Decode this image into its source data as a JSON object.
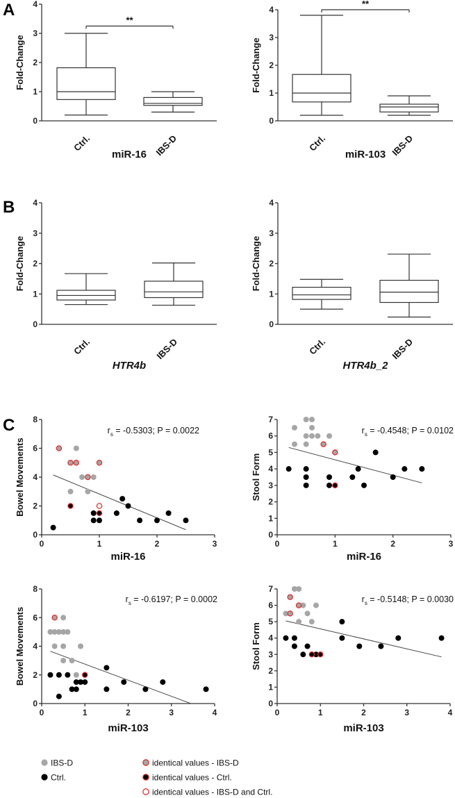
{
  "panel_letters": [
    "A",
    "B",
    "C"
  ],
  "colors": {
    "ibs": "#a6a6a6",
    "ctrl": "#000000",
    "ring": "#e03030",
    "axis": "#333333"
  },
  "legend": [
    {
      "type": "ibs",
      "label": "IBS-D"
    },
    {
      "type": "ctrl",
      "label": "Ctrl."
    },
    {
      "type": "ibs_id",
      "label": "identical values - IBS-D"
    },
    {
      "type": "ctrl_id",
      "label": "identical values - Ctrl."
    },
    {
      "type": "both_id",
      "label": "identical values - IBS-D and Ctrl."
    }
  ],
  "chart_data": [
    {
      "type": "box",
      "panel": "A",
      "title": "",
      "xlabel": "miR-16",
      "xlabel_italic": false,
      "ylabel": "Fold-Change",
      "ylim": [
        0,
        4
      ],
      "yticks": [
        "0",
        "1",
        "2",
        "3",
        "4"
      ],
      "categories": [
        "Ctrl.",
        "IBS-D"
      ],
      "boxes": [
        {
          "min": 0.2,
          "q1": 0.73,
          "median": 1.0,
          "q3": 1.82,
          "max": 3.0
        },
        {
          "min": 0.3,
          "q1": 0.53,
          "median": 0.6,
          "q3": 0.8,
          "max": 1.0
        }
      ],
      "significance": {
        "label": "**",
        "y": 3.25
      }
    },
    {
      "type": "box",
      "panel": "A",
      "title": "",
      "xlabel": "miR-103",
      "xlabel_italic": false,
      "ylabel": "Fold-Change",
      "ylim": [
        0,
        4
      ],
      "yticks": [
        "0",
        "1",
        "2",
        "3",
        "4"
      ],
      "categories": [
        "Ctrl.",
        "IBS-D"
      ],
      "boxes": [
        {
          "min": 0.2,
          "q1": 0.68,
          "median": 1.0,
          "q3": 1.67,
          "max": 3.8
        },
        {
          "min": 0.2,
          "q1": 0.32,
          "median": 0.5,
          "q3": 0.6,
          "max": 0.9
        }
      ],
      "significance": {
        "label": "**",
        "y": 4.0
      }
    },
    {
      "type": "box",
      "panel": "B",
      "title": "",
      "xlabel": "HTR4b",
      "xlabel_italic": true,
      "ylabel": "Fold-Change",
      "ylim": [
        0,
        4
      ],
      "yticks": [
        "0",
        "1",
        "2",
        "3",
        "4"
      ],
      "categories": [
        "Ctrl.",
        "IBS-D"
      ],
      "boxes": [
        {
          "min": 0.65,
          "q1": 0.8,
          "median": 0.95,
          "q3": 1.12,
          "max": 1.67
        },
        {
          "min": 0.63,
          "q1": 0.88,
          "median": 1.07,
          "q3": 1.42,
          "max": 2.02
        }
      ]
    },
    {
      "type": "box",
      "panel": "B",
      "title": "",
      "xlabel": "HTR4b_2",
      "xlabel_italic": true,
      "ylabel": "Fold-Change",
      "ylim": [
        0,
        4
      ],
      "yticks": [
        "0",
        "1",
        "2",
        "3",
        "4"
      ],
      "categories": [
        "Ctrl.",
        "IBS-D"
      ],
      "boxes": [
        {
          "min": 0.5,
          "q1": 0.82,
          "median": 0.97,
          "q3": 1.22,
          "max": 1.48
        },
        {
          "min": 0.24,
          "q1": 0.72,
          "median": 1.06,
          "q3": 1.45,
          "max": 2.31
        }
      ]
    },
    {
      "type": "scatter",
      "panel": "C",
      "xlabel": "miR-16",
      "ylabel": "Bowel Movements",
      "xlim": [
        0,
        3
      ],
      "ylim": [
        0,
        8
      ],
      "xticks": [
        "0",
        "1",
        "2",
        "3"
      ],
      "yticks": [
        "0",
        "2",
        "4",
        "6",
        "8"
      ],
      "ytick_values": [
        0,
        2,
        4,
        6,
        8
      ],
      "annotation": {
        "r_prefix": "r",
        "r_sub": "s",
        "text": " = -0.5303; P = 0.0022"
      },
      "fit_line": [
        [
          0.2,
          4.15
        ],
        [
          2.5,
          0.35
        ]
      ],
      "points": [
        {
          "x": 0.3,
          "y": 6,
          "t": "ibs_id"
        },
        {
          "x": 0.5,
          "y": 5,
          "t": "ibs_id"
        },
        {
          "x": 0.6,
          "y": 5,
          "t": "ibs_id"
        },
        {
          "x": 0.8,
          "y": 4,
          "t": "ibs_id"
        },
        {
          "x": 1.0,
          "y": 5,
          "t": "ibs_id"
        },
        {
          "x": 0.6,
          "y": 6,
          "t": "ibs"
        },
        {
          "x": 0.7,
          "y": 4,
          "t": "ibs"
        },
        {
          "x": 0.9,
          "y": 4,
          "t": "ibs"
        },
        {
          "x": 0.5,
          "y": 3,
          "t": "ibs"
        },
        {
          "x": 0.8,
          "y": 3,
          "t": "ibs"
        },
        {
          "x": 0.5,
          "y": 2,
          "t": "ctrl_id"
        },
        {
          "x": 1.0,
          "y": 1.5,
          "t": "ctrl_id"
        },
        {
          "x": 1.0,
          "y": 2,
          "t": "both_id"
        },
        {
          "x": 0.2,
          "y": 0.5,
          "t": "ctrl"
        },
        {
          "x": 0.9,
          "y": 1.5,
          "t": "ctrl"
        },
        {
          "x": 0.9,
          "y": 1,
          "t": "ctrl"
        },
        {
          "x": 1.0,
          "y": 1,
          "t": "ctrl"
        },
        {
          "x": 1.3,
          "y": 1.5,
          "t": "ctrl"
        },
        {
          "x": 1.4,
          "y": 2.5,
          "t": "ctrl"
        },
        {
          "x": 1.5,
          "y": 2,
          "t": "ctrl"
        },
        {
          "x": 1.7,
          "y": 1,
          "t": "ctrl"
        },
        {
          "x": 2.0,
          "y": 1,
          "t": "ctrl"
        },
        {
          "x": 2.2,
          "y": 1.5,
          "t": "ctrl"
        },
        {
          "x": 2.5,
          "y": 1,
          "t": "ctrl"
        }
      ]
    },
    {
      "type": "scatter",
      "panel": "C",
      "xlabel": "miR-16",
      "ylabel": "Stool Form",
      "xlim": [
        0,
        3
      ],
      "ylim": [
        0,
        7
      ],
      "xticks": [
        "0",
        "1",
        "2",
        "3"
      ],
      "yticks": [
        "0",
        "1",
        "2",
        "3",
        "4",
        "5",
        "6",
        "7"
      ],
      "ytick_values": [
        0,
        1,
        2,
        3,
        4,
        5,
        6,
        7
      ],
      "annotation": {
        "r_prefix": "r",
        "r_sub": "s",
        "text": " = -0.4548; P = 0.0102"
      },
      "fit_line": [
        [
          0.2,
          5.3
        ],
        [
          2.5,
          3.15
        ]
      ],
      "points": [
        {
          "x": 0.5,
          "y": 7,
          "t": "ibs"
        },
        {
          "x": 0.6,
          "y": 7,
          "t": "ibs"
        },
        {
          "x": 0.3,
          "y": 6.5,
          "t": "ibs"
        },
        {
          "x": 0.6,
          "y": 6.5,
          "t": "ibs"
        },
        {
          "x": 0.5,
          "y": 6,
          "t": "ibs"
        },
        {
          "x": 0.6,
          "y": 6,
          "t": "ibs"
        },
        {
          "x": 0.7,
          "y": 6,
          "t": "ibs"
        },
        {
          "x": 0.9,
          "y": 6,
          "t": "ibs"
        },
        {
          "x": 0.3,
          "y": 5.5,
          "t": "ibs"
        },
        {
          "x": 0.5,
          "y": 5.5,
          "t": "ibs"
        },
        {
          "x": 0.8,
          "y": 5.5,
          "t": "ibs_id"
        },
        {
          "x": 1.0,
          "y": 5,
          "t": "ibs_id"
        },
        {
          "x": 0.2,
          "y": 4,
          "t": "ctrl"
        },
        {
          "x": 0.5,
          "y": 4,
          "t": "ctrl"
        },
        {
          "x": 0.5,
          "y": 3.5,
          "t": "ctrl"
        },
        {
          "x": 0.5,
          "y": 3,
          "t": "ctrl"
        },
        {
          "x": 0.9,
          "y": 3.5,
          "t": "ctrl"
        },
        {
          "x": 0.9,
          "y": 3,
          "t": "ctrl"
        },
        {
          "x": 1.3,
          "y": 3.5,
          "t": "ctrl"
        },
        {
          "x": 1.4,
          "y": 4,
          "t": "ctrl"
        },
        {
          "x": 1.5,
          "y": 3,
          "t": "ctrl"
        },
        {
          "x": 1.7,
          "y": 5,
          "t": "ctrl"
        },
        {
          "x": 2.0,
          "y": 3.5,
          "t": "ctrl"
        },
        {
          "x": 2.2,
          "y": 4,
          "t": "ctrl"
        },
        {
          "x": 2.5,
          "y": 4,
          "t": "ctrl"
        },
        {
          "x": 1.0,
          "y": 3,
          "t": "ctrl_id"
        }
      ]
    },
    {
      "type": "scatter",
      "panel": "C",
      "xlabel": "miR-103",
      "ylabel": "Bowel Movements",
      "xlim": [
        0,
        4
      ],
      "ylim": [
        0,
        8
      ],
      "xticks": [
        "0",
        "1",
        "2",
        "3",
        "4"
      ],
      "yticks": [
        "0",
        "2",
        "4",
        "6",
        "8"
      ],
      "ytick_values": [
        0,
        2,
        4,
        6,
        8
      ],
      "annotation": {
        "r_prefix": "r",
        "r_sub": "s",
        "text": " = -0.6197; P = 0.0002"
      },
      "fit_line": [
        [
          0.2,
          3.65
        ],
        [
          3.45,
          0
        ]
      ],
      "points": [
        {
          "x": 0.3,
          "y": 6,
          "t": "ibs_id"
        },
        {
          "x": 0.5,
          "y": 6,
          "t": "ibs"
        },
        {
          "x": 0.2,
          "y": 5,
          "t": "ibs"
        },
        {
          "x": 0.3,
          "y": 5,
          "t": "ibs"
        },
        {
          "x": 0.4,
          "y": 5,
          "t": "ibs"
        },
        {
          "x": 0.5,
          "y": 5,
          "t": "ibs"
        },
        {
          "x": 0.6,
          "y": 5,
          "t": "ibs"
        },
        {
          "x": 0.3,
          "y": 4,
          "t": "ibs"
        },
        {
          "x": 0.5,
          "y": 4,
          "t": "ibs"
        },
        {
          "x": 0.9,
          "y": 4,
          "t": "ibs"
        },
        {
          "x": 0.5,
          "y": 3,
          "t": "ibs"
        },
        {
          "x": 0.7,
          "y": 3,
          "t": "ibs"
        },
        {
          "x": 0.8,
          "y": 2,
          "t": "ibs"
        },
        {
          "x": 1.0,
          "y": 2,
          "t": "ctrl_id"
        },
        {
          "x": 0.2,
          "y": 2,
          "t": "ctrl"
        },
        {
          "x": 0.4,
          "y": 2,
          "t": "ctrl"
        },
        {
          "x": 0.6,
          "y": 2,
          "t": "ctrl"
        },
        {
          "x": 0.8,
          "y": 1.5,
          "t": "ctrl"
        },
        {
          "x": 0.9,
          "y": 1.5,
          "t": "ctrl"
        },
        {
          "x": 1.0,
          "y": 1.5,
          "t": "ctrl"
        },
        {
          "x": 0.7,
          "y": 1,
          "t": "ctrl"
        },
        {
          "x": 0.8,
          "y": 1,
          "t": "ctrl"
        },
        {
          "x": 1.5,
          "y": 2.5,
          "t": "ctrl"
        },
        {
          "x": 1.5,
          "y": 1,
          "t": "ctrl"
        },
        {
          "x": 1.9,
          "y": 1.5,
          "t": "ctrl"
        },
        {
          "x": 2.4,
          "y": 1,
          "t": "ctrl"
        },
        {
          "x": 2.8,
          "y": 1.5,
          "t": "ctrl"
        },
        {
          "x": 3.8,
          "y": 1,
          "t": "ctrl"
        },
        {
          "x": 0.4,
          "y": 0.5,
          "t": "ctrl"
        }
      ]
    },
    {
      "type": "scatter",
      "panel": "C",
      "xlabel": "miR-103",
      "ylabel": "Stool Form",
      "xlim": [
        0,
        4
      ],
      "ylim": [
        0,
        7
      ],
      "xticks": [
        "0",
        "1",
        "2",
        "3",
        "4"
      ],
      "yticks": [
        "0",
        "1",
        "2",
        "3",
        "4",
        "5",
        "6",
        "7"
      ],
      "ytick_values": [
        0,
        1,
        2,
        3,
        4,
        5,
        6,
        7
      ],
      "annotation": {
        "r_prefix": "r",
        "r_sub": "s",
        "text": " = -0.5148; P = 0.0030"
      },
      "fit_line": [
        [
          0.2,
          5.05
        ],
        [
          3.8,
          2.85
        ]
      ],
      "points": [
        {
          "x": 0.4,
          "y": 7,
          "t": "ibs"
        },
        {
          "x": 0.5,
          "y": 7,
          "t": "ibs"
        },
        {
          "x": 0.2,
          "y": 5.5,
          "t": "ibs"
        },
        {
          "x": 0.6,
          "y": 6,
          "t": "ibs"
        },
        {
          "x": 0.7,
          "y": 5.5,
          "t": "ibs"
        },
        {
          "x": 0.9,
          "y": 6,
          "t": "ibs"
        },
        {
          "x": 0.5,
          "y": 5,
          "t": "ibs"
        },
        {
          "x": 0.8,
          "y": 5,
          "t": "ibs"
        },
        {
          "x": 0.3,
          "y": 6.5,
          "t": "ibs_id"
        },
        {
          "x": 0.3,
          "y": 5.5,
          "t": "ibs_id"
        },
        {
          "x": 0.5,
          "y": 6,
          "t": "ibs_id"
        },
        {
          "x": 0.2,
          "y": 4,
          "t": "ctrl"
        },
        {
          "x": 0.4,
          "y": 4,
          "t": "ctrl"
        },
        {
          "x": 0.4,
          "y": 3.5,
          "t": "ctrl"
        },
        {
          "x": 0.7,
          "y": 3.5,
          "t": "ctrl"
        },
        {
          "x": 0.6,
          "y": 3,
          "t": "ctrl"
        },
        {
          "x": 0.9,
          "y": 3,
          "t": "ctrl"
        },
        {
          "x": 1.5,
          "y": 5,
          "t": "ctrl"
        },
        {
          "x": 1.5,
          "y": 4,
          "t": "ctrl"
        },
        {
          "x": 1.9,
          "y": 3.5,
          "t": "ctrl"
        },
        {
          "x": 2.4,
          "y": 3.5,
          "t": "ctrl"
        },
        {
          "x": 2.8,
          "y": 4,
          "t": "ctrl"
        },
        {
          "x": 3.8,
          "y": 4,
          "t": "ctrl"
        },
        {
          "x": 0.8,
          "y": 3,
          "t": "ctrl_id"
        },
        {
          "x": 1.0,
          "y": 3,
          "t": "ctrl_id"
        }
      ]
    }
  ]
}
